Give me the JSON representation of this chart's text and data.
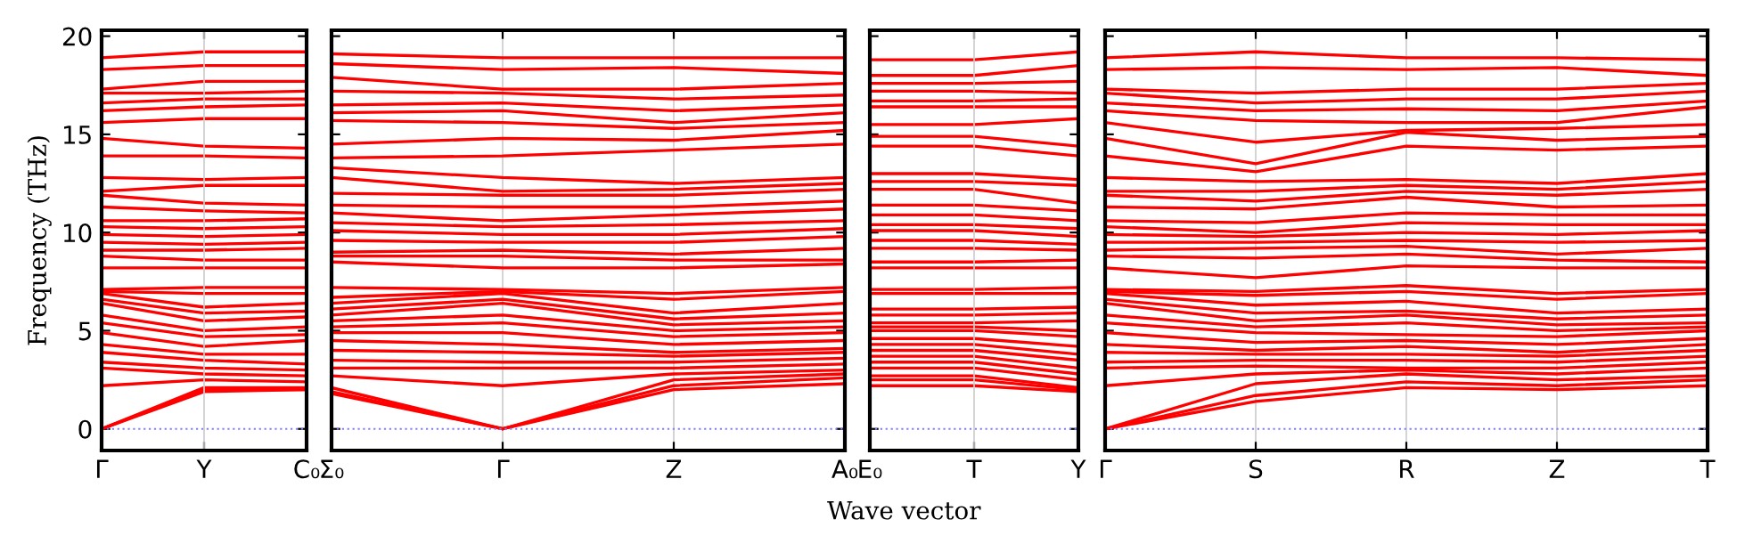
{
  "chart_data": [
    {
      "type": "line",
      "ylabel": "Frequency (THz)",
      "categories": [
        "Γ",
        "Y",
        "C₀"
      ],
      "ylim": [
        -1.1,
        20.3
      ],
      "yticks": [
        0,
        5,
        10,
        15,
        20
      ],
      "line_style": "solid",
      "ref_lines": [
        {
          "axis": "y",
          "value": 0,
          "color": "#8080ff",
          "line_style": "dotted"
        },
        {
          "axis": "x",
          "value": "Y",
          "color": "#cccccc",
          "line_style": "solid"
        }
      ],
      "series": [
        {
          "color": "#ff0000",
          "values": [
            0,
            1.9,
            2.0
          ]
        },
        {
          "color": "#ff0000",
          "values": [
            0,
            2.0,
            2.0
          ]
        },
        {
          "color": "#ff0000",
          "values": [
            0,
            2.1,
            2.1
          ]
        },
        {
          "color": "#ff0000",
          "values": [
            2.2,
            2.5,
            2.4
          ]
        },
        {
          "color": "#ff0000",
          "values": [
            3.1,
            2.8,
            2.7
          ]
        },
        {
          "color": "#ff0000",
          "values": [
            3.4,
            3.1,
            3.0
          ]
        },
        {
          "color": "#ff0000",
          "values": [
            3.9,
            3.5,
            3.3
          ]
        },
        {
          "color": "#ff0000",
          "values": [
            4.3,
            3.8,
            3.8
          ]
        },
        {
          "color": "#ff0000",
          "values": [
            4.9,
            4.2,
            4.5
          ]
        },
        {
          "color": "#ff0000",
          "values": [
            5.4,
            4.7,
            4.8
          ]
        },
        {
          "color": "#ff0000",
          "values": [
            5.8,
            5.0,
            5.2
          ]
        },
        {
          "color": "#ff0000",
          "values": [
            6.4,
            5.5,
            5.7
          ]
        },
        {
          "color": "#ff0000",
          "values": [
            6.6,
            5.9,
            6.0
          ]
        },
        {
          "color": "#ff0000",
          "values": [
            6.9,
            6.2,
            6.4
          ]
        },
        {
          "color": "#ff0000",
          "values": [
            7.0,
            6.9,
            6.9
          ]
        },
        {
          "color": "#ff0000",
          "values": [
            7.1,
            7.2,
            7.2
          ]
        },
        {
          "color": "#ff0000",
          "values": [
            8.2,
            8.2,
            8.2
          ]
        },
        {
          "color": "#ff0000",
          "values": [
            8.8,
            8.6,
            8.6
          ]
        },
        {
          "color": "#ff0000",
          "values": [
            9.1,
            9.1,
            9.2
          ]
        },
        {
          "color": "#ff0000",
          "values": [
            9.5,
            9.4,
            9.5
          ]
        },
        {
          "color": "#ff0000",
          "values": [
            9.9,
            9.8,
            9.9
          ]
        },
        {
          "color": "#ff0000",
          "values": [
            10.3,
            10.2,
            10.3
          ]
        },
        {
          "color": "#ff0000",
          "values": [
            10.6,
            10.6,
            10.7
          ]
        },
        {
          "color": "#ff0000",
          "values": [
            11.3,
            11.1,
            11.0
          ]
        },
        {
          "color": "#ff0000",
          "values": [
            11.9,
            11.5,
            11.4
          ]
        },
        {
          "color": "#ff0000",
          "values": [
            12.1,
            12.4,
            12.4
          ]
        },
        {
          "color": "#ff0000",
          "values": [
            12.8,
            12.7,
            12.8
          ]
        },
        {
          "color": "#ff0000",
          "values": [
            13.9,
            13.9,
            13.8
          ]
        },
        {
          "color": "#ff0000",
          "values": [
            14.8,
            14.4,
            14.3
          ]
        },
        {
          "color": "#ff0000",
          "values": [
            15.6,
            15.8,
            15.8
          ]
        },
        {
          "color": "#ff0000",
          "values": [
            16.2,
            16.4,
            16.5
          ]
        },
        {
          "color": "#ff0000",
          "values": [
            16.6,
            16.8,
            16.8
          ]
        },
        {
          "color": "#ff0000",
          "values": [
            17.1,
            17.1,
            17.2
          ]
        },
        {
          "color": "#ff0000",
          "values": [
            17.3,
            17.7,
            17.7
          ]
        },
        {
          "color": "#ff0000",
          "values": [
            18.3,
            18.5,
            18.5
          ]
        },
        {
          "color": "#ff0000",
          "values": [
            18.9,
            19.2,
            19.2
          ]
        }
      ]
    },
    {
      "type": "line",
      "categories": [
        "Σ₀",
        "Γ",
        "Z",
        "A₀"
      ],
      "ylim": [
        -1.1,
        20.3
      ],
      "yticks": [
        0,
        5,
        10,
        15,
        20
      ],
      "tick_labels": "x",
      "grid": "x",
      "line_style": "solid",
      "ref_lines": [
        {
          "axis": "y",
          "value": 0,
          "color": "#8080ff",
          "line_style": "dotted"
        }
      ],
      "series": [
        {
          "color": "#ff0000",
          "values": [
            1.8,
            0,
            2.0,
            2.3
          ]
        },
        {
          "color": "#ff0000",
          "values": [
            1.9,
            0,
            2.2,
            2.6
          ]
        },
        {
          "color": "#ff0000",
          "values": [
            2.1,
            0,
            2.5,
            2.8
          ]
        },
        {
          "color": "#ff0000",
          "values": [
            2.7,
            2.2,
            2.8,
            3.0
          ]
        },
        {
          "color": "#ff0000",
          "values": [
            3.1,
            3.1,
            3.1,
            3.3
          ]
        },
        {
          "color": "#ff0000",
          "values": [
            3.5,
            3.4,
            3.4,
            3.6
          ]
        },
        {
          "color": "#ff0000",
          "values": [
            4.0,
            3.9,
            3.7,
            3.9
          ]
        },
        {
          "color": "#ff0000",
          "values": [
            4.5,
            4.3,
            3.9,
            4.1
          ]
        },
        {
          "color": "#ff0000",
          "values": [
            4.9,
            4.9,
            4.3,
            4.5
          ]
        },
        {
          "color": "#ff0000",
          "values": [
            5.2,
            5.4,
            4.7,
            4.9
          ]
        },
        {
          "color": "#ff0000",
          "values": [
            5.5,
            5.8,
            5.0,
            5.2
          ]
        },
        {
          "color": "#ff0000",
          "values": [
            5.8,
            6.4,
            5.3,
            5.5
          ]
        },
        {
          "color": "#ff0000",
          "values": [
            6.1,
            6.6,
            5.6,
            5.9
          ]
        },
        {
          "color": "#ff0000",
          "values": [
            6.4,
            6.9,
            5.9,
            6.4
          ]
        },
        {
          "color": "#ff0000",
          "values": [
            6.7,
            7.0,
            6.6,
            7.0
          ]
        },
        {
          "color": "#ff0000",
          "values": [
            7.2,
            7.1,
            6.9,
            7.2
          ]
        },
        {
          "color": "#ff0000",
          "values": [
            8.5,
            8.2,
            8.2,
            8.4
          ]
        },
        {
          "color": "#ff0000",
          "values": [
            8.8,
            8.8,
            8.6,
            8.6
          ]
        },
        {
          "color": "#ff0000",
          "values": [
            9.0,
            9.1,
            8.9,
            9.2
          ]
        },
        {
          "color": "#ff0000",
          "values": [
            9.6,
            9.5,
            9.5,
            9.8
          ]
        },
        {
          "color": "#ff0000",
          "values": [
            10.1,
            9.9,
            9.9,
            10.2
          ]
        },
        {
          "color": "#ff0000",
          "values": [
            10.5,
            10.3,
            10.4,
            10.6
          ]
        },
        {
          "color": "#ff0000",
          "values": [
            11.0,
            10.6,
            10.9,
            11.2
          ]
        },
        {
          "color": "#ff0000",
          "values": [
            11.4,
            11.3,
            11.3,
            11.6
          ]
        },
        {
          "color": "#ff0000",
          "values": [
            12.0,
            11.9,
            11.9,
            12.2
          ]
        },
        {
          "color": "#ff0000",
          "values": [
            12.8,
            12.1,
            12.2,
            12.5
          ]
        },
        {
          "color": "#ff0000",
          "values": [
            13.3,
            12.8,
            12.5,
            12.8
          ]
        },
        {
          "color": "#ff0000",
          "values": [
            13.8,
            13.9,
            14.2,
            14.5
          ]
        },
        {
          "color": "#ff0000",
          "values": [
            14.5,
            14.8,
            14.7,
            15.2
          ]
        },
        {
          "color": "#ff0000",
          "values": [
            15.7,
            15.6,
            15.3,
            15.6
          ]
        },
        {
          "color": "#ff0000",
          "values": [
            16.1,
            16.2,
            15.6,
            16.1
          ]
        },
        {
          "color": "#ff0000",
          "values": [
            16.5,
            16.6,
            16.2,
            16.5
          ]
        },
        {
          "color": "#ff0000",
          "values": [
            17.2,
            17.1,
            16.8,
            17.0
          ]
        },
        {
          "color": "#ff0000",
          "values": [
            17.9,
            17.3,
            17.3,
            17.6
          ]
        },
        {
          "color": "#ff0000",
          "values": [
            18.6,
            18.3,
            18.4,
            18.1
          ]
        },
        {
          "color": "#ff0000",
          "values": [
            19.1,
            18.9,
            18.9,
            18.9
          ]
        }
      ]
    },
    {
      "type": "line",
      "xlabel": "Wave vector",
      "categories": [
        "E₀",
        "T",
        "Y"
      ],
      "ylim": [
        -1.1,
        20.3
      ],
      "yticks": [
        0,
        5,
        10,
        15,
        20
      ],
      "tick_labels": "x",
      "line_style": "solid",
      "ref_lines": [
        {
          "axis": "y",
          "value": 0,
          "color": "#8080ff",
          "line_style": "dotted"
        },
        {
          "axis": "x",
          "value": "T",
          "color": "#cccccc",
          "line_style": "solid"
        }
      ],
      "series": [
        {
          "color": "#ff0000",
          "values": [
            2.2,
            2.2,
            1.9
          ]
        },
        {
          "color": "#ff0000",
          "values": [
            2.5,
            2.5,
            2.0
          ]
        },
        {
          "color": "#ff0000",
          "values": [
            2.7,
            2.7,
            2.1
          ]
        },
        {
          "color": "#ff0000",
          "values": [
            3.1,
            3.1,
            2.5
          ]
        },
        {
          "color": "#ff0000",
          "values": [
            3.4,
            3.4,
            2.8
          ]
        },
        {
          "color": "#ff0000",
          "values": [
            3.7,
            3.7,
            3.1
          ]
        },
        {
          "color": "#ff0000",
          "values": [
            4.0,
            4.0,
            3.5
          ]
        },
        {
          "color": "#ff0000",
          "values": [
            4.3,
            4.3,
            3.8
          ]
        },
        {
          "color": "#ff0000",
          "values": [
            4.6,
            4.6,
            4.2
          ]
        },
        {
          "color": "#ff0000",
          "values": [
            5.0,
            5.0,
            4.7
          ]
        },
        {
          "color": "#ff0000",
          "values": [
            5.2,
            5.2,
            5.0
          ]
        },
        {
          "color": "#ff0000",
          "values": [
            5.4,
            5.4,
            5.5
          ]
        },
        {
          "color": "#ff0000",
          "values": [
            5.8,
            5.8,
            5.9
          ]
        },
        {
          "color": "#ff0000",
          "values": [
            6.1,
            6.1,
            6.2
          ]
        },
        {
          "color": "#ff0000",
          "values": [
            6.9,
            6.9,
            6.9
          ]
        },
        {
          "color": "#ff0000",
          "values": [
            7.1,
            7.1,
            7.2
          ]
        },
        {
          "color": "#ff0000",
          "values": [
            8.2,
            8.2,
            8.2
          ]
        },
        {
          "color": "#ff0000",
          "values": [
            8.5,
            8.5,
            8.6
          ]
        },
        {
          "color": "#ff0000",
          "values": [
            9.2,
            9.2,
            9.1
          ]
        },
        {
          "color": "#ff0000",
          "values": [
            9.6,
            9.6,
            9.4
          ]
        },
        {
          "color": "#ff0000",
          "values": [
            10.1,
            10.1,
            9.8
          ]
        },
        {
          "color": "#ff0000",
          "values": [
            10.4,
            10.4,
            10.2
          ]
        },
        {
          "color": "#ff0000",
          "values": [
            10.9,
            10.9,
            10.6
          ]
        },
        {
          "color": "#ff0000",
          "values": [
            11.4,
            11.4,
            11.1
          ]
        },
        {
          "color": "#ff0000",
          "values": [
            12.2,
            12.2,
            11.5
          ]
        },
        {
          "color": "#ff0000",
          "values": [
            12.6,
            12.6,
            12.4
          ]
        },
        {
          "color": "#ff0000",
          "values": [
            13.0,
            13.0,
            12.7
          ]
        },
        {
          "color": "#ff0000",
          "values": [
            14.4,
            14.4,
            13.9
          ]
        },
        {
          "color": "#ff0000",
          "values": [
            14.9,
            14.9,
            14.4
          ]
        },
        {
          "color": "#ff0000",
          "values": [
            15.5,
            15.5,
            15.8
          ]
        },
        {
          "color": "#ff0000",
          "values": [
            16.4,
            16.4,
            16.4
          ]
        },
        {
          "color": "#ff0000",
          "values": [
            16.7,
            16.7,
            16.8
          ]
        },
        {
          "color": "#ff0000",
          "values": [
            17.2,
            17.2,
            17.1
          ]
        },
        {
          "color": "#ff0000",
          "values": [
            17.6,
            17.6,
            17.7
          ]
        },
        {
          "color": "#ff0000",
          "values": [
            18.0,
            18.0,
            18.5
          ]
        },
        {
          "color": "#ff0000",
          "values": [
            18.8,
            18.8,
            19.2
          ]
        }
      ]
    },
    {
      "type": "line",
      "categories": [
        "Γ",
        "S",
        "R",
        "Z",
        "T"
      ],
      "ylim": [
        -1.1,
        20.3
      ],
      "yticks": [
        0,
        5,
        10,
        15,
        20
      ],
      "tick_labels": "x",
      "grid": "x",
      "line_style": "solid",
      "ref_lines": [
        {
          "axis": "y",
          "value": 0,
          "color": "#8080ff",
          "line_style": "dotted"
        }
      ],
      "series": [
        {
          "color": "#ff0000",
          "values": [
            0,
            1.4,
            2.1,
            2.0,
            2.2
          ]
        },
        {
          "color": "#ff0000",
          "values": [
            0,
            1.7,
            2.4,
            2.2,
            2.5
          ]
        },
        {
          "color": "#ff0000",
          "values": [
            0,
            2.3,
            2.8,
            2.5,
            2.7
          ]
        },
        {
          "color": "#ff0000",
          "values": [
            2.2,
            2.8,
            3.0,
            2.8,
            3.1
          ]
        },
        {
          "color": "#ff0000",
          "values": [
            3.1,
            3.2,
            3.1,
            3.1,
            3.4
          ]
        },
        {
          "color": "#ff0000",
          "values": [
            3.4,
            3.5,
            3.5,
            3.4,
            3.7
          ]
        },
        {
          "color": "#ff0000",
          "values": [
            3.9,
            3.8,
            3.8,
            3.7,
            4.0
          ]
        },
        {
          "color": "#ff0000",
          "values": [
            4.3,
            4.0,
            4.2,
            3.9,
            4.3
          ]
        },
        {
          "color": "#ff0000",
          "values": [
            4.9,
            4.4,
            4.5,
            4.3,
            4.6
          ]
        },
        {
          "color": "#ff0000",
          "values": [
            5.4,
            4.9,
            4.8,
            4.7,
            5.0
          ]
        },
        {
          "color": "#ff0000",
          "values": [
            5.8,
            5.2,
            5.4,
            5.0,
            5.2
          ]
        },
        {
          "color": "#ff0000",
          "values": [
            6.4,
            5.5,
            5.8,
            5.3,
            5.4
          ]
        },
        {
          "color": "#ff0000",
          "values": [
            6.6,
            5.9,
            6.0,
            5.6,
            5.8
          ]
        },
        {
          "color": "#ff0000",
          "values": [
            6.9,
            6.3,
            6.5,
            5.9,
            6.1
          ]
        },
        {
          "color": "#ff0000",
          "values": [
            7.0,
            6.8,
            7.0,
            6.6,
            6.9
          ]
        },
        {
          "color": "#ff0000",
          "values": [
            7.1,
            7.0,
            7.3,
            6.9,
            7.1
          ]
        },
        {
          "color": "#ff0000",
          "values": [
            8.2,
            7.7,
            8.3,
            8.2,
            8.2
          ]
        },
        {
          "color": "#ff0000",
          "values": [
            8.8,
            8.7,
            8.9,
            8.6,
            8.5
          ]
        },
        {
          "color": "#ff0000",
          "values": [
            9.1,
            9.2,
            9.3,
            8.9,
            9.2
          ]
        },
        {
          "color": "#ff0000",
          "values": [
            9.5,
            9.5,
            9.6,
            9.5,
            9.6
          ]
        },
        {
          "color": "#ff0000",
          "values": [
            9.9,
            9.8,
            10.0,
            9.9,
            10.1
          ]
        },
        {
          "color": "#ff0000",
          "values": [
            10.3,
            10.0,
            10.5,
            10.4,
            10.4
          ]
        },
        {
          "color": "#ff0000",
          "values": [
            10.6,
            10.5,
            11.0,
            10.9,
            10.9
          ]
        },
        {
          "color": "#ff0000",
          "values": [
            11.3,
            11.2,
            11.8,
            11.3,
            11.4
          ]
        },
        {
          "color": "#ff0000",
          "values": [
            11.9,
            11.6,
            12.1,
            11.9,
            12.2
          ]
        },
        {
          "color": "#ff0000",
          "values": [
            12.1,
            12.1,
            12.4,
            12.2,
            12.6
          ]
        },
        {
          "color": "#ff0000",
          "values": [
            12.8,
            12.6,
            12.7,
            12.5,
            13.0
          ]
        },
        {
          "color": "#ff0000",
          "values": [
            13.9,
            13.1,
            14.4,
            14.2,
            14.4
          ]
        },
        {
          "color": "#ff0000",
          "values": [
            14.8,
            13.5,
            15.1,
            14.7,
            14.9
          ]
        },
        {
          "color": "#ff0000",
          "values": [
            15.6,
            14.6,
            15.2,
            15.3,
            15.5
          ]
        },
        {
          "color": "#ff0000",
          "values": [
            16.2,
            15.7,
            15.6,
            15.6,
            16.4
          ]
        },
        {
          "color": "#ff0000",
          "values": [
            16.6,
            16.2,
            16.3,
            16.2,
            16.7
          ]
        },
        {
          "color": "#ff0000",
          "values": [
            17.1,
            16.6,
            16.8,
            16.8,
            17.2
          ]
        },
        {
          "color": "#ff0000",
          "values": [
            17.3,
            17.1,
            17.3,
            17.3,
            17.6
          ]
        },
        {
          "color": "#ff0000",
          "values": [
            18.3,
            18.4,
            18.3,
            18.4,
            18.0
          ]
        },
        {
          "color": "#ff0000",
          "values": [
            18.9,
            19.2,
            18.9,
            18.9,
            18.8
          ]
        }
      ]
    }
  ]
}
